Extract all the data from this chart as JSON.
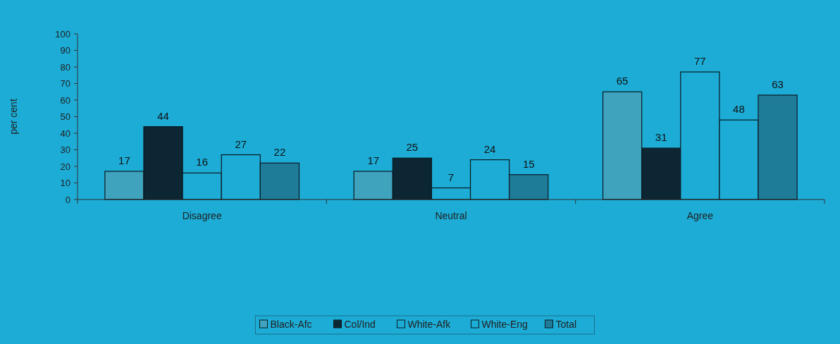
{
  "chart_data": {
    "type": "bar",
    "ylabel": "per cent",
    "categories": [
      "Disagree",
      "Neutral",
      "Agree"
    ],
    "series": [
      {
        "name": "Black-Afc",
        "color": "#3fa3bd",
        "values": [
          17,
          17,
          65
        ]
      },
      {
        "name": "Col/Ind",
        "color": "#0c2633",
        "values": [
          44,
          25,
          31
        ]
      },
      {
        "name": "White-Afk",
        "color": "#1cacd6",
        "values": [
          16,
          7,
          77
        ]
      },
      {
        "name": "White-Eng",
        "color": "#1cacd6",
        "values": [
          27,
          24,
          48
        ]
      },
      {
        "name": "Total",
        "color": "#1f7c99",
        "values": [
          22,
          15,
          63
        ]
      }
    ],
    "ylim": [
      0,
      100
    ],
    "yticks": [
      0,
      10,
      20,
      30,
      40,
      50,
      60,
      70,
      80,
      90,
      100
    ],
    "data_labels": true,
    "legend": "bottom",
    "grid": false
  }
}
